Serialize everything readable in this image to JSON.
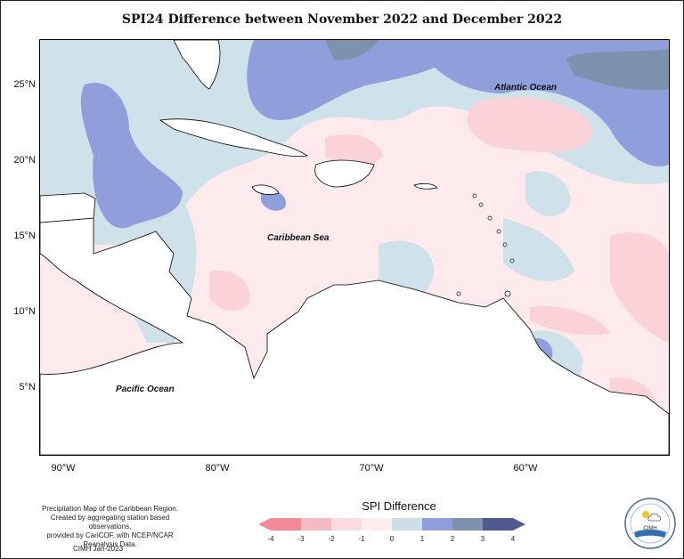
{
  "title": "SPI24 Difference between November 2022 and December 2022",
  "map": {
    "latitude_ticks": [
      {
        "value": 25,
        "label": "25°N"
      },
      {
        "value": 20,
        "label": "20°N"
      },
      {
        "value": 15,
        "label": "15°N"
      },
      {
        "value": 10,
        "label": "10°N"
      },
      {
        "value": 5,
        "label": "5°N"
      }
    ],
    "longitude_ticks": [
      {
        "value": -90,
        "label": "90°W"
      },
      {
        "value": -80,
        "label": "80°W"
      },
      {
        "value": -70,
        "label": "70°W"
      },
      {
        "value": -60,
        "label": "60°W"
      }
    ],
    "labels": {
      "atlantic": "Atlantic Ocean",
      "caribbean": "Caribbean Sea",
      "pacific": "Pacific Ocean"
    }
  },
  "credit": {
    "line1": "Precipitation Map of the Caribbean Region.",
    "line2": "Created by aggregating station based observations,",
    "line3": "provided by CariCOF, with NCEP/NCAR Reanalysis Data."
  },
  "footer": "CIMH Jan-2023",
  "legend": {
    "title": "SPI Difference",
    "ticks": [
      "-4",
      "-3",
      "-2",
      "-1",
      "0",
      "1",
      "2",
      "3",
      "4"
    ],
    "colors": [
      "#f48a95",
      "#f2bcc2",
      "#fadbe0",
      "#fdeeee",
      "#cde0e8",
      "#8e9fdc",
      "#7b93ad",
      "#4f5a8f"
    ]
  },
  "logo_text": "CIMH",
  "logo_icon": "cimh-logo-sun-cloud-icon"
}
